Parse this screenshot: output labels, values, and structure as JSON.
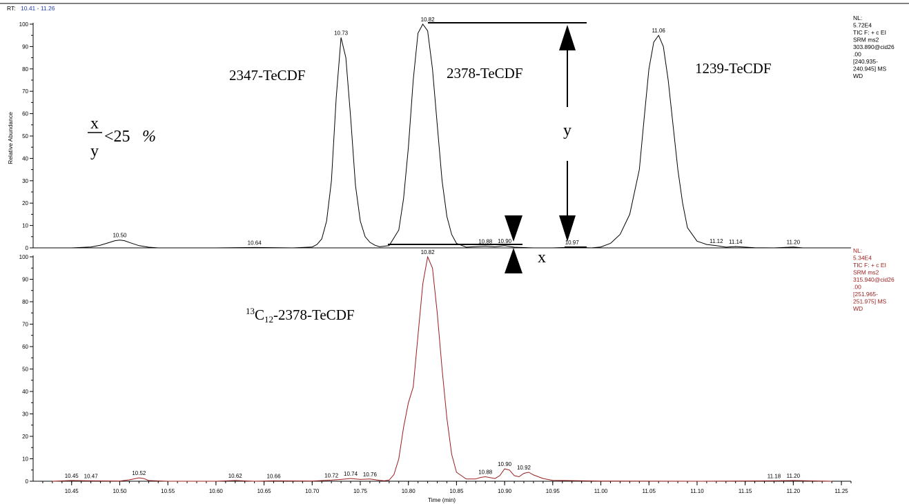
{
  "header": {
    "rt_label": "RT:",
    "rt_range": "10.41 - 11.26",
    "rt_color": "#1f3fae"
  },
  "colors": {
    "trace_top": "#000000",
    "trace_bottom": "#9b1c1c",
    "info_top": "#000000",
    "info_bottom": "#9b1c1c"
  },
  "chart_data": [
    {
      "type": "line",
      "panel": "top",
      "ylabel": "Relative Abundance",
      "xlim": [
        10.41,
        11.26
      ],
      "ylim": [
        0,
        100
      ],
      "yticks": [
        "0",
        "10",
        "20",
        "30",
        "40",
        "50",
        "60",
        "70",
        "80",
        "90",
        "100"
      ],
      "info": [
        "NL:",
        "5.72E4",
        "TIC F: + c EI",
        "SRM ms2",
        "303.890@cid26",
        ".00",
        "[240.935-",
        "240.945] MS",
        "WD"
      ],
      "peaks": [
        {
          "x": 10.5,
          "y": 3.5,
          "label": "10.50"
        },
        {
          "x": 10.64,
          "y": 0.2,
          "label": "10.64"
        },
        {
          "x": 10.73,
          "y": 94,
          "label": "10.73"
        },
        {
          "x": 10.82,
          "y": 100,
          "label": "10.82"
        },
        {
          "x": 10.88,
          "y": 0.8,
          "label": "10.88"
        },
        {
          "x": 10.9,
          "y": 1.0,
          "label": "10.90"
        },
        {
          "x": 10.97,
          "y": 0.3,
          "label": "10.97"
        },
        {
          "x": 11.06,
          "y": 95,
          "label": "11.06"
        },
        {
          "x": 11.12,
          "y": 1.0,
          "label": "11.12"
        },
        {
          "x": 11.14,
          "y": 0.6,
          "label": "11.14"
        },
        {
          "x": 11.2,
          "y": 0.4,
          "label": "11.20"
        }
      ],
      "series": [
        {
          "x": [
            10.45,
            10.47,
            10.48,
            10.49,
            10.495,
            10.5,
            10.505,
            10.51,
            10.52,
            10.53,
            10.54,
            10.6,
            10.64,
            10.68,
            10.7,
            10.705,
            10.71,
            10.715,
            10.72,
            10.725,
            10.73,
            10.735,
            10.74,
            10.745,
            10.75,
            10.755,
            10.76,
            10.765,
            10.77,
            10.78,
            10.79,
            10.795,
            10.8,
            10.805,
            10.81,
            10.815,
            10.82,
            10.825,
            10.83,
            10.835,
            10.84,
            10.845,
            10.85,
            10.86,
            10.88,
            10.89,
            10.9,
            10.91,
            10.93,
            10.95,
            10.97,
            10.99,
            11.0,
            11.01,
            11.02,
            11.03,
            11.04,
            11.045,
            11.05,
            11.055,
            11.06,
            11.065,
            11.07,
            11.075,
            11.08,
            11.085,
            11.09,
            11.1,
            11.11,
            11.12,
            11.13,
            11.14,
            11.16,
            11.18,
            11.2,
            11.21,
            11.24
          ],
          "y": [
            0,
            0.4,
            1.2,
            2.5,
            3.2,
            3.5,
            3.2,
            2.4,
            1.0,
            0.3,
            0,
            0,
            0.2,
            0,
            0.4,
            1.5,
            4,
            12,
            30,
            67,
            94,
            85,
            58,
            28,
            12,
            5,
            2.5,
            1.2,
            0.5,
            1,
            8,
            22,
            45,
            75,
            96,
            100,
            97,
            80,
            55,
            30,
            14,
            6,
            2,
            0.3,
            0.8,
            0.5,
            1.0,
            0.3,
            0,
            0,
            0.3,
            0,
            0.4,
            2,
            6,
            15,
            35,
            58,
            80,
            92,
            95,
            90,
            75,
            55,
            35,
            20,
            9,
            3,
            1.5,
            1.0,
            0.3,
            0.6,
            0.1,
            0,
            0.4,
            0,
            0
          ]
        }
      ]
    },
    {
      "type": "line",
      "panel": "bottom",
      "xlabel": "Time (min)",
      "xlim": [
        10.41,
        11.26
      ],
      "ylim": [
        0,
        100
      ],
      "yticks": [
        "0",
        "10",
        "20",
        "30",
        "40",
        "50",
        "60",
        "70",
        "80",
        "90",
        "100"
      ],
      "xticks": [
        "10.45",
        "10.50",
        "10.55",
        "10.60",
        "10.65",
        "10.70",
        "10.75",
        "10.80",
        "10.85",
        "10.90",
        "10.95",
        "11.00",
        "11.05",
        "11.10",
        "11.15",
        "11.20",
        "11.25"
      ],
      "info": [
        "NL:",
        "5.34E4",
        "TIC F: + c EI",
        "SRM ms2",
        "315.940@cid26",
        ".00",
        "[251.965-",
        "251.975] MS",
        "WD"
      ],
      "peaks": [
        {
          "x": 10.45,
          "y": 0.3,
          "label": "10.45"
        },
        {
          "x": 10.47,
          "y": 0.2,
          "label": "10.47"
        },
        {
          "x": 10.52,
          "y": 1.5,
          "label": "10.52"
        },
        {
          "x": 10.62,
          "y": 0.3,
          "label": "10.62"
        },
        {
          "x": 10.66,
          "y": 0.2,
          "label": "10.66"
        },
        {
          "x": 10.72,
          "y": 0.5,
          "label": "10.72"
        },
        {
          "x": 10.74,
          "y": 1.2,
          "label": "10.74"
        },
        {
          "x": 10.76,
          "y": 1.0,
          "label": "10.76"
        },
        {
          "x": 10.82,
          "y": 100,
          "label": "10.82"
        },
        {
          "x": 10.88,
          "y": 2.0,
          "label": "10.88"
        },
        {
          "x": 10.9,
          "y": 5.5,
          "label": "10.90"
        },
        {
          "x": 10.92,
          "y": 4.0,
          "label": "10.92"
        },
        {
          "x": 11.18,
          "y": 0.2,
          "label": "11.18"
        },
        {
          "x": 11.2,
          "y": 0.3,
          "label": "11.20"
        }
      ],
      "series": [
        {
          "x": [
            10.43,
            10.45,
            10.47,
            10.5,
            10.51,
            10.52,
            10.525,
            10.53,
            10.55,
            10.6,
            10.62,
            10.64,
            10.66,
            10.7,
            10.72,
            10.73,
            10.74,
            10.75,
            10.76,
            10.77,
            10.775,
            10.78,
            10.785,
            10.79,
            10.795,
            10.8,
            10.805,
            10.81,
            10.815,
            10.82,
            10.825,
            10.83,
            10.835,
            10.84,
            10.845,
            10.85,
            10.86,
            10.87,
            10.875,
            10.88,
            10.89,
            10.895,
            10.9,
            10.905,
            10.91,
            10.915,
            10.92,
            10.925,
            10.93,
            10.94,
            10.95,
            11.0,
            11.1,
            11.18,
            11.2,
            11.24
          ],
          "y": [
            0,
            0.3,
            0.2,
            0.1,
            0.6,
            1.5,
            1.2,
            0.3,
            0,
            0,
            0.3,
            0,
            0.2,
            0.1,
            0.5,
            0.8,
            1.2,
            0.8,
            1.0,
            0.4,
            0.2,
            0.5,
            3,
            10,
            24,
            35,
            42,
            65,
            88,
            100,
            95,
            75,
            50,
            28,
            12,
            4,
            1,
            1,
            1.7,
            2.0,
            1.2,
            2.5,
            5.5,
            5.0,
            2.5,
            2.0,
            3.5,
            4.0,
            2.8,
            1.2,
            0.4,
            0.1,
            0,
            0.2,
            0.3,
            0
          ]
        }
      ]
    }
  ],
  "annotations": {
    "top_2347": "2347-TeCDF",
    "top_2378": "2378-TeCDF",
    "top_1239": "1239-TeCDF",
    "ratio_x": "x",
    "ratio_y": "y",
    "ratio_rest": "<25",
    "ratio_pct": "%",
    "y_label": "y",
    "x_label": "x",
    "bottom_iso_mass": "13",
    "bottom_iso_c": "C",
    "bottom_iso_n": "12",
    "bottom_iso_name": "-2378-TeCDF"
  }
}
